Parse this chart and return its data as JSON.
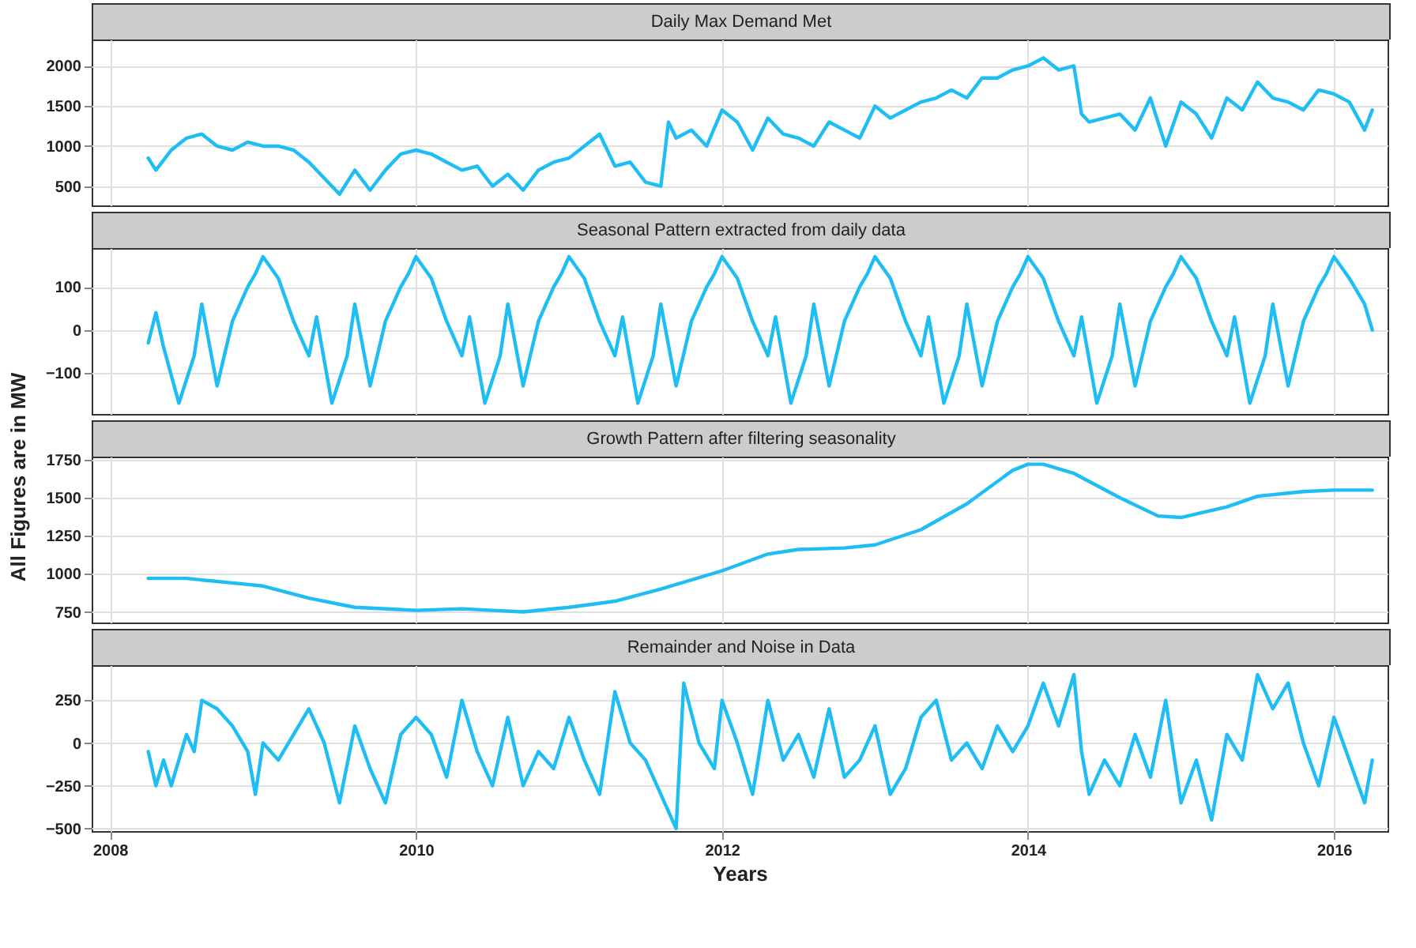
{
  "chart_data": [
    {
      "type": "line",
      "title": "Daily Max Demand Met",
      "tick_labels": "y",
      "grid": true,
      "xlim": [
        2007.88,
        2016.35
      ],
      "xticks": [
        2008,
        2010,
        2012,
        2014,
        2016
      ],
      "ylim": [
        260,
        2330
      ],
      "yticks": [
        500,
        1000,
        1500,
        2000
      ],
      "series": [
        {
          "color": "#1ebdf3",
          "x": [
            2008.25,
            2008.3,
            2008.4,
            2008.5,
            2008.6,
            2008.7,
            2008.8,
            2008.9,
            2009.0,
            2009.1,
            2009.2,
            2009.3,
            2009.4,
            2009.5,
            2009.6,
            2009.7,
            2009.8,
            2009.9,
            2010.0,
            2010.1,
            2010.2,
            2010.3,
            2010.4,
            2010.5,
            2010.6,
            2010.7,
            2010.8,
            2010.9,
            2011.0,
            2011.1,
            2011.2,
            2011.3,
            2011.4,
            2011.5,
            2011.6,
            2011.65,
            2011.7,
            2011.8,
            2011.9,
            2012.0,
            2012.1,
            2012.2,
            2012.3,
            2012.4,
            2012.5,
            2012.6,
            2012.7,
            2012.8,
            2012.9,
            2013.0,
            2013.1,
            2013.2,
            2013.3,
            2013.4,
            2013.5,
            2013.6,
            2013.7,
            2013.8,
            2013.9,
            2014.0,
            2014.1,
            2014.2,
            2014.3,
            2014.35,
            2014.4,
            2014.5,
            2014.6,
            2014.7,
            2014.8,
            2014.9,
            2015.0,
            2015.1,
            2015.2,
            2015.3,
            2015.4,
            2015.5,
            2015.6,
            2015.7,
            2015.8,
            2015.9,
            2016.0,
            2016.1,
            2016.2,
            2016.25
          ],
          "values": [
            850,
            700,
            950,
            1100,
            1150,
            1000,
            950,
            1050,
            1000,
            1000,
            950,
            800,
            600,
            400,
            700,
            450,
            700,
            900,
            950,
            900,
            800,
            700,
            750,
            500,
            650,
            450,
            700,
            800,
            850,
            1000,
            1150,
            750,
            800,
            550,
            500,
            1300,
            1100,
            1200,
            1000,
            1450,
            1300,
            950,
            1350,
            1150,
            1100,
            1000,
            1300,
            1200,
            1100,
            1500,
            1350,
            1450,
            1550,
            1600,
            1700,
            1600,
            1850,
            1850,
            1950,
            2000,
            2100,
            1950,
            2000,
            1400,
            1300,
            1350,
            1400,
            1200,
            1600,
            1000,
            1550,
            1400,
            1100,
            1600,
            1450,
            1800,
            1600,
            1550,
            1450,
            1700,
            1650,
            1550,
            1200,
            1450
          ]
        }
      ]
    },
    {
      "type": "line",
      "title": "Seasonal Pattern extracted from daily data",
      "tick_labels": "y",
      "grid": true,
      "ylabel": "All Figures are in MW",
      "xlim": [
        2007.88,
        2016.35
      ],
      "xticks": [
        2008,
        2010,
        2012,
        2014,
        2016
      ],
      "ylim": [
        -195,
        190
      ],
      "yticks": [
        -100,
        0,
        100
      ],
      "series": [
        {
          "color": "#1ebdf3",
          "x": [
            2008.25,
            2008.3,
            2008.35,
            2008.45,
            2008.55,
            2008.6,
            2008.7,
            2008.8,
            2008.9,
            2008.95,
            2009.0,
            2009.1,
            2009.2,
            2009.3,
            2009.35,
            2009.45,
            2009.55,
            2009.6,
            2009.7,
            2009.8,
            2009.9,
            2009.95,
            2010.0,
            2010.1,
            2010.2,
            2010.3,
            2010.35,
            2010.45,
            2010.55,
            2010.6,
            2010.7,
            2010.8,
            2010.9,
            2010.95,
            2011.0,
            2011.1,
            2011.2,
            2011.3,
            2011.35,
            2011.45,
            2011.55,
            2011.6,
            2011.7,
            2011.8,
            2011.9,
            2011.95,
            2012.0,
            2012.1,
            2012.2,
            2012.3,
            2012.35,
            2012.45,
            2012.55,
            2012.6,
            2012.7,
            2012.8,
            2012.9,
            2012.95,
            2013.0,
            2013.1,
            2013.2,
            2013.3,
            2013.35,
            2013.45,
            2013.55,
            2013.6,
            2013.7,
            2013.8,
            2013.9,
            2013.95,
            2014.0,
            2014.1,
            2014.2,
            2014.3,
            2014.35,
            2014.45,
            2014.55,
            2014.6,
            2014.7,
            2014.8,
            2014.9,
            2014.95,
            2015.0,
            2015.1,
            2015.2,
            2015.3,
            2015.35,
            2015.45,
            2015.55,
            2015.6,
            2015.7,
            2015.8,
            2015.9,
            2015.95,
            2016.0,
            2016.1,
            2016.2,
            2016.25
          ],
          "values": [
            -30,
            40,
            -40,
            -170,
            -60,
            60,
            -130,
            20,
            100,
            130,
            170,
            120,
            20,
            -60,
            30,
            -170,
            -60,
            60,
            -130,
            20,
            100,
            130,
            170,
            120,
            20,
            -60,
            30,
            -170,
            -60,
            60,
            -130,
            20,
            100,
            130,
            170,
            120,
            20,
            -60,
            30,
            -170,
            -60,
            60,
            -130,
            20,
            100,
            130,
            170,
            120,
            20,
            -60,
            30,
            -170,
            -60,
            60,
            -130,
            20,
            100,
            130,
            170,
            120,
            20,
            -60,
            30,
            -170,
            -60,
            60,
            -130,
            20,
            100,
            130,
            170,
            120,
            20,
            -60,
            30,
            -170,
            -60,
            60,
            -130,
            20,
            100,
            130,
            170,
            120,
            20,
            -60,
            30,
            -170,
            -60,
            60,
            -130,
            20,
            100,
            130,
            170,
            120,
            60,
            0
          ]
        }
      ]
    },
    {
      "type": "line",
      "title": "Growth Pattern after filtering seasonality",
      "tick_labels": "y",
      "grid": true,
      "xlim": [
        2007.88,
        2016.35
      ],
      "xticks": [
        2008,
        2010,
        2012,
        2014,
        2016
      ],
      "ylim": [
        680,
        1770
      ],
      "yticks": [
        750,
        1000,
        1250,
        1500,
        1750
      ],
      "series": [
        {
          "color": "#1ebdf3",
          "x": [
            2008.25,
            2008.5,
            2008.8,
            2009.0,
            2009.3,
            2009.6,
            2010.0,
            2010.3,
            2010.5,
            2010.7,
            2011.0,
            2011.3,
            2011.6,
            2012.0,
            2012.3,
            2012.5,
            2012.8,
            2013.0,
            2013.3,
            2013.6,
            2013.9,
            2014.0,
            2014.1,
            2014.3,
            2014.6,
            2014.85,
            2015.0,
            2015.3,
            2015.5,
            2015.8,
            2016.0,
            2016.25
          ],
          "values": [
            970,
            970,
            940,
            920,
            840,
            780,
            760,
            770,
            760,
            750,
            780,
            820,
            900,
            1020,
            1130,
            1160,
            1170,
            1190,
            1290,
            1460,
            1680,
            1720,
            1720,
            1660,
            1500,
            1380,
            1370,
            1440,
            1510,
            1540,
            1550,
            1550
          ]
        }
      ]
    },
    {
      "type": "line",
      "title": "Remainder and Noise in Data",
      "xlabel": "Years",
      "grid": true,
      "xlim": [
        2007.88,
        2016.35
      ],
      "xticks": [
        2008,
        2010,
        2012,
        2014,
        2016
      ],
      "ylim": [
        -515,
        455
      ],
      "yticks": [
        -500,
        -250,
        0,
        250
      ],
      "series": [
        {
          "color": "#1ebdf3",
          "x": [
            2008.25,
            2008.3,
            2008.35,
            2008.4,
            2008.5,
            2008.55,
            2008.6,
            2008.7,
            2008.8,
            2008.9,
            2008.95,
            2009.0,
            2009.1,
            2009.2,
            2009.3,
            2009.4,
            2009.5,
            2009.6,
            2009.7,
            2009.8,
            2009.9,
            2010.0,
            2010.1,
            2010.2,
            2010.3,
            2010.4,
            2010.5,
            2010.6,
            2010.7,
            2010.8,
            2010.9,
            2011.0,
            2011.1,
            2011.2,
            2011.3,
            2011.4,
            2011.5,
            2011.6,
            2011.7,
            2011.75,
            2011.85,
            2011.95,
            2012.0,
            2012.1,
            2012.2,
            2012.3,
            2012.4,
            2012.5,
            2012.6,
            2012.7,
            2012.8,
            2012.9,
            2013.0,
            2013.1,
            2013.2,
            2013.3,
            2013.4,
            2013.5,
            2013.6,
            2013.7,
            2013.8,
            2013.9,
            2014.0,
            2014.1,
            2014.2,
            2014.3,
            2014.35,
            2014.4,
            2014.5,
            2014.6,
            2014.7,
            2014.8,
            2014.9,
            2015.0,
            2015.1,
            2015.2,
            2015.3,
            2015.4,
            2015.5,
            2015.6,
            2015.7,
            2015.8,
            2015.9,
            2016.0,
            2016.1,
            2016.2,
            2016.25
          ],
          "values": [
            -50,
            -250,
            -100,
            -250,
            50,
            -50,
            250,
            200,
            100,
            -50,
            -300,
            0,
            -100,
            50,
            200,
            0,
            -350,
            100,
            -150,
            -350,
            50,
            150,
            50,
            -200,
            250,
            -50,
            -250,
            150,
            -250,
            -50,
            -150,
            150,
            -100,
            -300,
            300,
            0,
            -100,
            -300,
            -500,
            350,
            0,
            -150,
            250,
            0,
            -300,
            250,
            -100,
            50,
            -200,
            200,
            -200,
            -100,
            100,
            -300,
            -150,
            150,
            250,
            -100,
            0,
            -150,
            100,
            -50,
            100,
            350,
            100,
            400,
            -50,
            -300,
            -100,
            -250,
            50,
            -200,
            250,
            -350,
            -100,
            -450,
            50,
            -100,
            400,
            200,
            350,
            0,
            -250,
            150,
            -100,
            -350,
            -100
          ]
        }
      ]
    }
  ]
}
